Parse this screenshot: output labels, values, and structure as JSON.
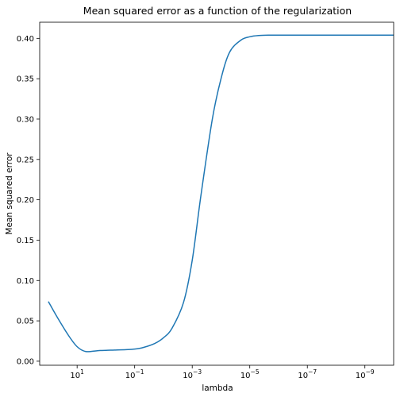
{
  "chart_data": {
    "type": "line",
    "title": "Mean squared error as a function of the regularization",
    "xlabel": "lambda",
    "ylabel": "Mean squared error",
    "x_scale": "log",
    "x_axis_inverted": true,
    "xlim": [
      200,
      1e-10
    ],
    "ylim": [
      -0.005,
      0.42
    ],
    "x_ticks": [
      {
        "base": "10",
        "exp": "1",
        "value": 10
      },
      {
        "base": "10",
        "exp": "−1",
        "value": 0.1
      },
      {
        "base": "10",
        "exp": "−3",
        "value": 0.001
      },
      {
        "base": "10",
        "exp": "−5",
        "value": 1e-05
      },
      {
        "base": "10",
        "exp": "−7",
        "value": 1e-07
      },
      {
        "base": "10",
        "exp": "−9",
        "value": 1e-09
      }
    ],
    "y_ticks": [
      "0.00",
      "0.05",
      "0.10",
      "0.15",
      "0.20",
      "0.25",
      "0.30",
      "0.35",
      "0.40"
    ],
    "grid": false,
    "line_color": "#1f77b4",
    "series": [
      {
        "x": [
          100,
          50,
          20,
          10,
          5,
          2,
          1,
          0.5,
          0.2,
          0.1,
          0.05,
          0.02,
          0.01,
          0.005,
          0.002,
          0.001,
          0.0005,
          0.0002,
          0.0001,
          5e-05,
          2e-05,
          1e-05,
          5e-06,
          2e-06,
          1e-06,
          1e-07,
          1e-08,
          1e-09,
          1e-10
        ],
        "y": [
          0.074,
          0.055,
          0.032,
          0.018,
          0.012,
          0.013,
          0.0135,
          0.0138,
          0.0143,
          0.015,
          0.017,
          0.022,
          0.029,
          0.041,
          0.073,
          0.125,
          0.205,
          0.3,
          0.35,
          0.383,
          0.398,
          0.402,
          0.4035,
          0.404,
          0.404,
          0.404,
          0.404,
          0.404,
          0.404
        ]
      }
    ]
  }
}
